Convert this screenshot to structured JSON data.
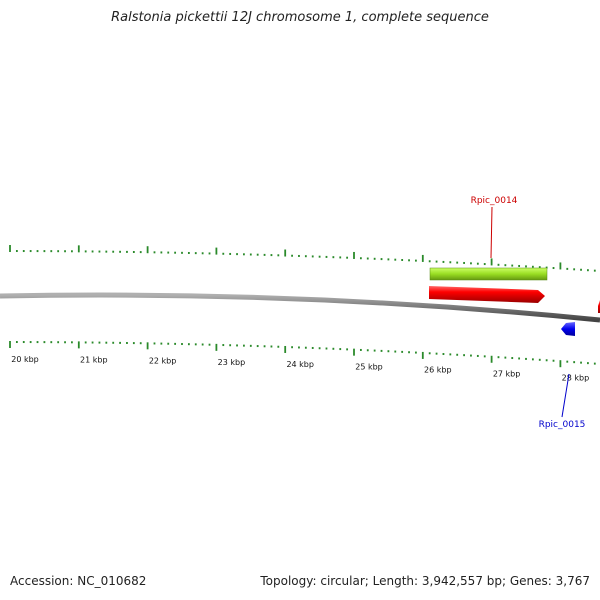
{
  "title": "Ralstonia pickettii 12J chromosome 1, complete sequence",
  "footer": {
    "accession": "Accession: NC_010682",
    "summary": "Topology: circular; Length: 3,942,557 bp; Genes: 3,767"
  },
  "scale": {
    "unit": "kbp",
    "labels": [
      "20 kbp",
      "21 kbp",
      "22 kbp",
      "23 kbp",
      "24 kbp",
      "25 kbp",
      "26 kbp",
      "27 kbp",
      "28 kbp"
    ]
  },
  "genes": [
    {
      "name": "Rpic_0014",
      "color": "#cc0000"
    },
    {
      "name": "Rpic_0015",
      "color": "#0000cc"
    }
  ],
  "colors": {
    "backbone": "#7a7a7a",
    "tick": "#2a8a2a",
    "forward_feature": "#ee0000",
    "reverse_feature": "#0000ee",
    "highlight_feature": "#aaee33"
  }
}
